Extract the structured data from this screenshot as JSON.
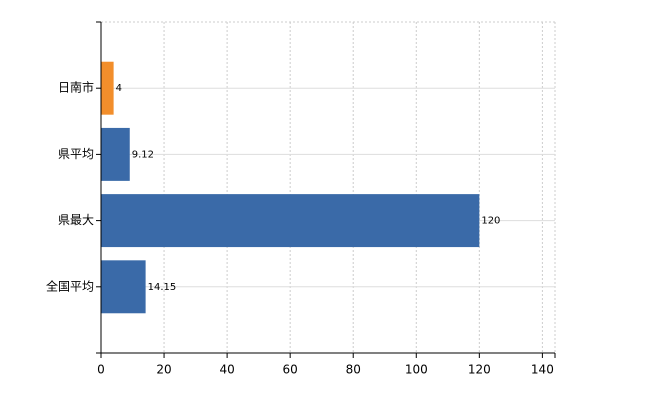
{
  "chart_data": {
    "type": "barh",
    "categories": [
      "日南市",
      "県平均",
      "県最大",
      "全国平均"
    ],
    "values": [
      4,
      9.12,
      120,
      14.15
    ],
    "colors": [
      "#f28e2b",
      "#3a6aa8",
      "#3a6aa8",
      "#3a6aa8"
    ],
    "xlim": [
      0,
      144
    ],
    "xticks": [
      0,
      20,
      40,
      60,
      80,
      100,
      120,
      140
    ],
    "grid": true
  }
}
